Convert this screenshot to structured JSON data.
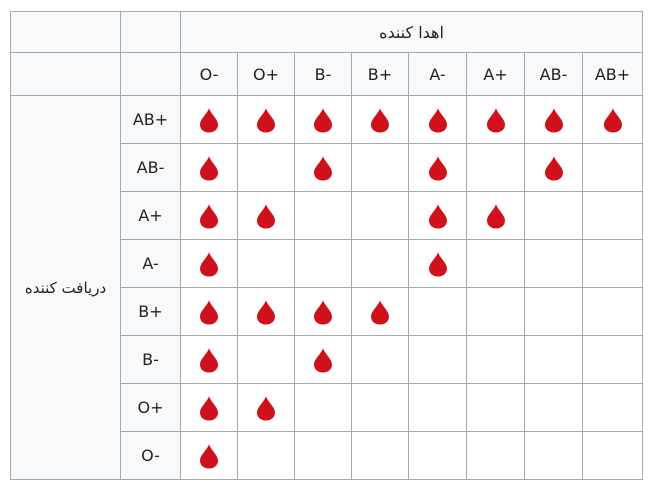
{
  "header": {
    "donor_label": "اهدا کننده",
    "recipient_label": "دریافت کننده"
  },
  "donors": [
    "O-",
    "O+",
    "B-",
    "B+",
    "A-",
    "A+",
    "AB-",
    "AB+"
  ],
  "recipients": [
    {
      "type": "AB+",
      "compatible": [
        true,
        true,
        true,
        true,
        true,
        true,
        true,
        true
      ]
    },
    {
      "type": "AB-",
      "compatible": [
        true,
        false,
        true,
        false,
        true,
        false,
        true,
        false
      ]
    },
    {
      "type": "A+",
      "compatible": [
        true,
        true,
        false,
        false,
        true,
        true,
        false,
        false
      ]
    },
    {
      "type": "A-",
      "compatible": [
        true,
        false,
        false,
        false,
        true,
        false,
        false,
        false
      ]
    },
    {
      "type": "B+",
      "compatible": [
        true,
        true,
        true,
        true,
        false,
        false,
        false,
        false
      ]
    },
    {
      "type": "B-",
      "compatible": [
        true,
        false,
        true,
        false,
        false,
        false,
        false,
        false
      ]
    },
    {
      "type": "O+",
      "compatible": [
        true,
        true,
        false,
        false,
        false,
        false,
        false,
        false
      ]
    },
    {
      "type": "O-",
      "compatible": [
        true,
        false,
        false,
        false,
        false,
        false,
        false,
        false
      ]
    }
  ],
  "colors": {
    "drop": "#d0101a",
    "border": "#a2a9b1",
    "header_bg": "#f8f9fa"
  },
  "icons": {
    "compatible_marker": "blood-drop-icon"
  }
}
